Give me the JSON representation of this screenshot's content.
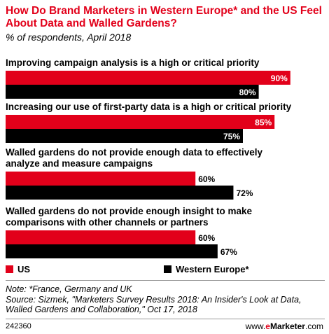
{
  "header": {
    "title": "How Do Brand Marketers in Western Europe* and the US Feel About Data and Walled Gardens?",
    "subtitle": "% of respondents, April 2018"
  },
  "chart_data": {
    "type": "bar",
    "orientation": "horizontal",
    "categories": [
      [
        "Improving campaign analysis is a high or critical priority"
      ],
      [
        "Increasing our use of first-party data is a high or critical priority"
      ],
      [
        "Walled gardens do not provide enough data to effectively",
        "analyze and measure campaigns"
      ],
      [
        "Walled gardens do not provide enough insight to make",
        "comparisons with other channels or partners"
      ]
    ],
    "series": [
      {
        "name": "US",
        "color": "#e2001a",
        "values": [
          90,
          85,
          60,
          60
        ]
      },
      {
        "name": "Western Europe*",
        "color": "#000000",
        "values": [
          80,
          75,
          72,
          67
        ]
      }
    ],
    "value_suffix": "%",
    "xlim": [
      0,
      100
    ],
    "legend_position": "bottom",
    "grid": false
  },
  "legend": {
    "items": [
      {
        "label": "US",
        "color": "#e2001a"
      },
      {
        "label": "Western Europe*",
        "color": "#000000"
      }
    ]
  },
  "notes": {
    "note": "Note: *France, Germany and UK",
    "source": "Source: Sizmek, \"Marketers Survey Results 2018: An Insider's Look at Data, Walled Gardens and Collaboration,\" Oct 17, 2018"
  },
  "footer": {
    "chart_id": "242360",
    "brand_prefix": "www.",
    "brand_e": "e",
    "brand_main": "Marketer",
    "brand_suffix": ".com"
  }
}
